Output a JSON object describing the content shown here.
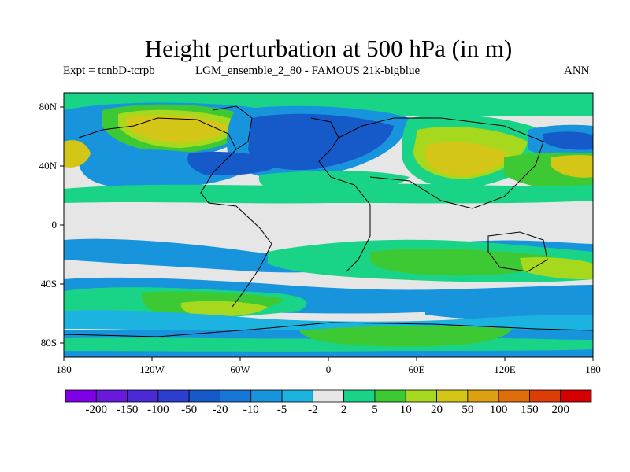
{
  "title": "Height perturbation at 500 hPa (in m)",
  "subtitle_left": "Expt = tcnbD-tcrpb",
  "subtitle_mid": "LGM_ensemble_2_80 - FAMOUS 21k-bigblue",
  "subtitle_right": "ANN",
  "lat_ticks": [
    "80N",
    "40N",
    "0",
    "40S",
    "80S"
  ],
  "lon_ticks": [
    "180",
    "120W",
    "60W",
    "0",
    "60E",
    "120E",
    "180"
  ],
  "colorbar": {
    "labels": [
      "-200",
      "-150",
      "-100",
      "-50",
      "-20",
      "-10",
      "-5",
      "-2",
      "2",
      "5",
      "10",
      "20",
      "50",
      "100",
      "150",
      "200"
    ],
    "colors": [
      "#7f00e6",
      "#6a18dc",
      "#4a2ad4",
      "#2a3ecf",
      "#1659c8",
      "#1876d6",
      "#1894dc",
      "#1cb3e0",
      "#e6e6e6",
      "#19d487",
      "#3dc933",
      "#a6d81e",
      "#d4c617",
      "#dca011",
      "#de6d0c",
      "#db3c08",
      "#d60000"
    ]
  }
}
